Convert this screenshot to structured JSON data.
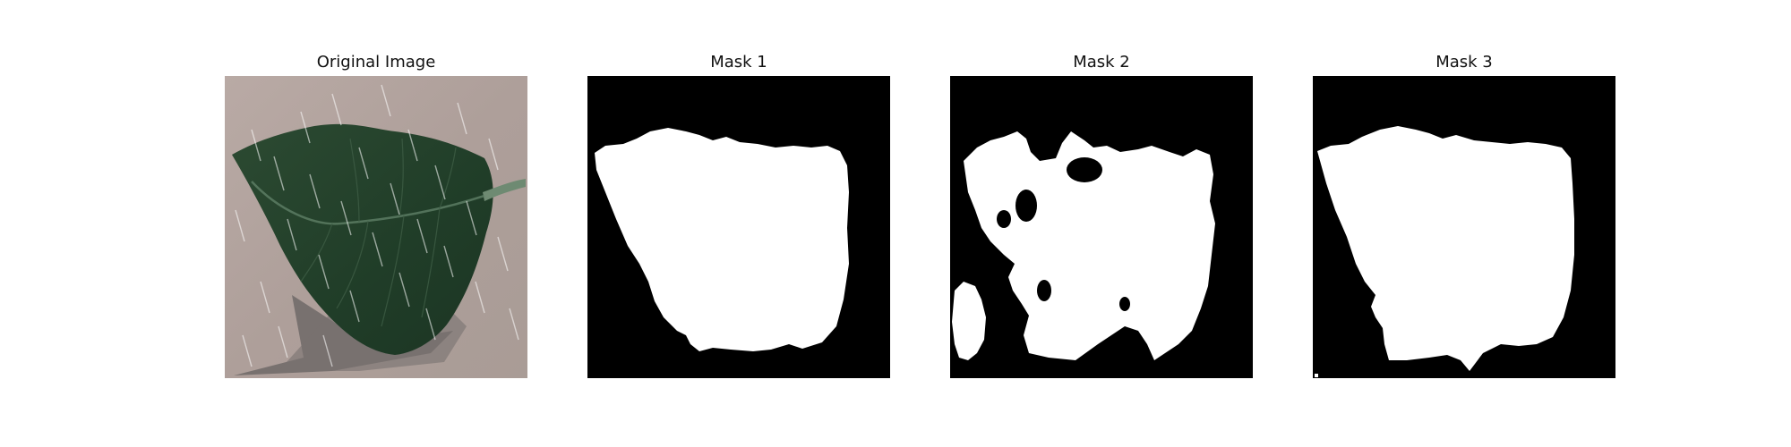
{
  "figure": {
    "panels": [
      {
        "title": "Original Image",
        "kind": "photo",
        "subject": "leaf-with-rain-streaks"
      },
      {
        "title": "Mask 1",
        "kind": "binary-mask"
      },
      {
        "title": "Mask 2",
        "kind": "binary-mask"
      },
      {
        "title": "Mask 3",
        "kind": "binary-mask"
      }
    ]
  },
  "colors": {
    "background": "#ffffff",
    "mask_background": "#000000",
    "mask_foreground": "#ffffff",
    "leaf_dark": "#1f3a28",
    "leaf_mid": "#2e4d34",
    "surface": "#b3a8a3",
    "shadow": "#6e6867"
  }
}
